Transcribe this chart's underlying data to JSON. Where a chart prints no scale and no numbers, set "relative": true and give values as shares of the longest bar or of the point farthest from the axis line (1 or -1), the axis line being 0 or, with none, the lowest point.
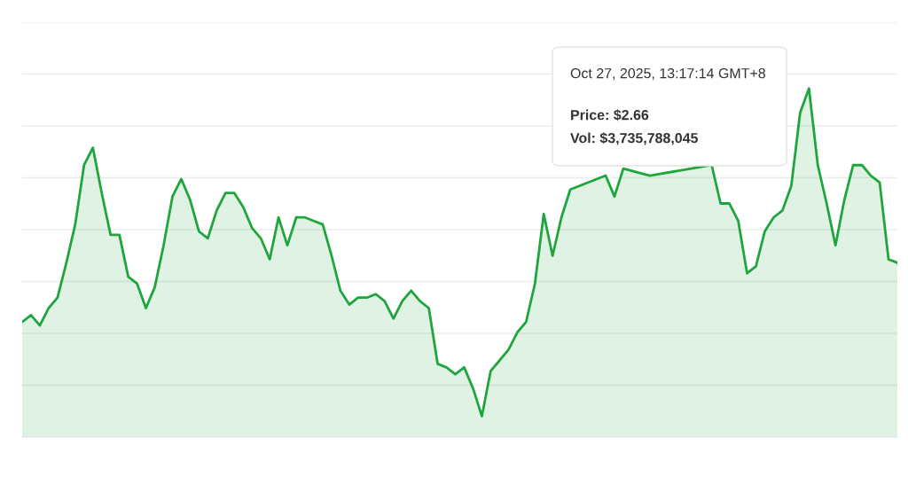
{
  "chart_data": {
    "type": "area",
    "relative": true,
    "grid": "y",
    "categories": [
      null,
      null,
      null,
      null,
      null,
      null,
      null,
      null,
      null,
      null,
      null,
      null,
      null,
      null,
      null,
      null,
      null,
      null,
      null,
      null,
      null,
      null,
      null,
      null,
      null,
      null,
      null,
      null,
      null,
      null,
      null,
      null,
      null,
      null,
      null,
      null,
      null,
      null,
      null,
      null,
      null,
      null,
      null,
      null,
      null,
      null,
      null,
      null,
      null,
      null,
      null,
      null,
      null,
      null,
      null,
      null,
      null,
      null,
      null,
      null,
      null,
      null,
      null,
      null,
      null,
      null,
      null,
      null,
      null,
      null,
      null,
      null,
      null,
      null,
      null,
      null,
      null,
      null,
      null,
      null,
      null,
      null,
      null,
      null,
      null,
      null,
      null,
      null,
      null,
      null,
      null,
      null,
      null,
      null,
      null,
      null,
      null,
      null,
      null,
      null
    ],
    "series": [
      {
        "color": "#1ea53c",
        "values": [
          0.33,
          0.35,
          0.32,
          0.37,
          0.4,
          0.5,
          0.61,
          0.78,
          0.83,
          0.7,
          0.58,
          0.58,
          0.46,
          0.44,
          0.37,
          0.43,
          0.55,
          0.69,
          0.74,
          0.68,
          0.59,
          0.57,
          0.65,
          0.7,
          0.7,
          0.66,
          0.6,
          0.57,
          0.51,
          0.63,
          0.55,
          0.63,
          0.63,
          0.62,
          0.61,
          0.52,
          0.42,
          0.38,
          0.4,
          0.4,
          0.41,
          0.39,
          0.34,
          0.39,
          0.42,
          0.39,
          0.37,
          0.21,
          0.2,
          0.18,
          0.2,
          0.14,
          0.06,
          0.19,
          0.22,
          0.25,
          0.3,
          0.33,
          0.44,
          0.64,
          0.52,
          0.63,
          0.71,
          null,
          null,
          null,
          0.75,
          0.69,
          0.77,
          null,
          null,
          0.75,
          null,
          null,
          null,
          null,
          null,
          null,
          0.78,
          0.67,
          0.67,
          0.62,
          0.47,
          0.49,
          0.59,
          0.63,
          0.65,
          0.72,
          0.93,
          1,
          0.78,
          0.67,
          0.55,
          0.68,
          0.78,
          0.78,
          0.75,
          0.73,
          0.51,
          0.5
        ]
      }
    ],
    "annotations": [
      "Oct 27, 2025, 13:17:14 GMT+8",
      "Price: $2.66",
      "Vol: $3,735,788,045"
    ]
  }
}
